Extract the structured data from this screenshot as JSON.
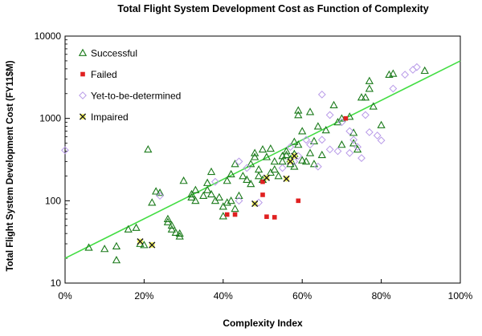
{
  "chart_data": {
    "type": "scatter",
    "title": "Total Flight System Development Cost as Function of Complexity",
    "xlabel": "Complexity Index",
    "ylabel": "Total Flight System Development Cost (FY11$M)",
    "xlim": [
      0,
      100
    ],
    "ylim": [
      10,
      10000
    ],
    "yscale": "log",
    "x_ticks": [
      "0%",
      "20%",
      "40%",
      "60%",
      "80%",
      "100%"
    ],
    "x_tick_values": [
      0,
      20,
      40,
      60,
      80,
      100
    ],
    "y_ticks": [
      "10",
      "100",
      "1000",
      "10000"
    ],
    "y_tick_values": [
      10,
      100,
      1000,
      10000
    ],
    "grid": false,
    "legend_position": "top-left",
    "trendline": {
      "color": "#44dd44",
      "points": [
        [
          0,
          20
        ],
        [
          100,
          5000
        ]
      ]
    },
    "series": [
      {
        "name": "Successful",
        "marker": "triangle",
        "color": "#1a7a1a",
        "points": [
          [
            6,
            27
          ],
          [
            10,
            26
          ],
          [
            13,
            19
          ],
          [
            13,
            28
          ],
          [
            16,
            45
          ],
          [
            18,
            47
          ],
          [
            19,
            30
          ],
          [
            20,
            29
          ],
          [
            21,
            420
          ],
          [
            22,
            95
          ],
          [
            23,
            130
          ],
          [
            24,
            125
          ],
          [
            26,
            60
          ],
          [
            26,
            55
          ],
          [
            27,
            50
          ],
          [
            27,
            45
          ],
          [
            28,
            41
          ],
          [
            29,
            40
          ],
          [
            29,
            37
          ],
          [
            30,
            175
          ],
          [
            32,
            110
          ],
          [
            32,
            120
          ],
          [
            33,
            100
          ],
          [
            33,
            135
          ],
          [
            35,
            115
          ],
          [
            36,
            135
          ],
          [
            36,
            165
          ],
          [
            37,
            225
          ],
          [
            37,
            120
          ],
          [
            38,
            100
          ],
          [
            39,
            110
          ],
          [
            40,
            85
          ],
          [
            40,
            65
          ],
          [
            41,
            95
          ],
          [
            41,
            175
          ],
          [
            42,
            100
          ],
          [
            42,
            210
          ],
          [
            43,
            80
          ],
          [
            43,
            280
          ],
          [
            44,
            115
          ],
          [
            45,
            200
          ],
          [
            46,
            180
          ],
          [
            47,
            280
          ],
          [
            47,
            160
          ],
          [
            48,
            380
          ],
          [
            48,
            340
          ],
          [
            49,
            200
          ],
          [
            49,
            240
          ],
          [
            50,
            180
          ],
          [
            50,
            420
          ],
          [
            51,
            340
          ],
          [
            52,
            430
          ],
          [
            52,
            220
          ],
          [
            53,
            300
          ],
          [
            53,
            240
          ],
          [
            54,
            200
          ],
          [
            55,
            300
          ],
          [
            55,
            350
          ],
          [
            56,
            360
          ],
          [
            56,
            400
          ],
          [
            57,
            280
          ],
          [
            57,
            320
          ],
          [
            58,
            370
          ],
          [
            58,
            260
          ],
          [
            58,
            520
          ],
          [
            59,
            480
          ],
          [
            59,
            1250
          ],
          [
            59,
            1100
          ],
          [
            60,
            700
          ],
          [
            60,
            310
          ],
          [
            61,
            300
          ],
          [
            62,
            380
          ],
          [
            62,
            1200
          ],
          [
            63,
            530
          ],
          [
            63,
            280
          ],
          [
            64,
            800
          ],
          [
            65,
            360
          ],
          [
            66,
            720
          ],
          [
            68,
            1450
          ],
          [
            69,
            900
          ],
          [
            70,
            480
          ],
          [
            70,
            1000
          ],
          [
            72,
            1050
          ],
          [
            73,
            670
          ],
          [
            73,
            500
          ],
          [
            74,
            420
          ],
          [
            75,
            1800
          ],
          [
            76,
            1800
          ],
          [
            77,
            2850
          ],
          [
            77,
            2300
          ],
          [
            78,
            1400
          ],
          [
            80,
            830
          ],
          [
            82,
            3400
          ],
          [
            83,
            3500
          ],
          [
            91,
            3800
          ]
        ]
      },
      {
        "name": "Failed",
        "marker": "square",
        "color": "#e02020",
        "points": [
          [
            41,
            68
          ],
          [
            43,
            68
          ],
          [
            50,
            170
          ],
          [
            50,
            118
          ],
          [
            51,
            64
          ],
          [
            53,
            63
          ],
          [
            59,
            100
          ],
          [
            71,
            1000
          ]
        ]
      },
      {
        "name": "Yet-to-be-determined",
        "marker": "diamond",
        "color": "#b89ae8",
        "points": [
          [
            0,
            410
          ],
          [
            24,
            115
          ],
          [
            38,
            170
          ],
          [
            44,
            100
          ],
          [
            44,
            300
          ],
          [
            46,
            250
          ],
          [
            49,
            95
          ],
          [
            55,
            250
          ],
          [
            57,
            450
          ],
          [
            58,
            300
          ],
          [
            59,
            350
          ],
          [
            61,
            550
          ],
          [
            62,
            480
          ],
          [
            64,
            260
          ],
          [
            65,
            1950
          ],
          [
            65,
            550
          ],
          [
            67,
            420
          ],
          [
            67,
            1100
          ],
          [
            69,
            400
          ],
          [
            70,
            900
          ],
          [
            72,
            700
          ],
          [
            72,
            380
          ],
          [
            73,
            550
          ],
          [
            74,
            450
          ],
          [
            75,
            330
          ],
          [
            76,
            1100
          ],
          [
            77,
            680
          ],
          [
            79,
            620
          ],
          [
            80,
            540
          ],
          [
            83,
            2300
          ],
          [
            86,
            3400
          ],
          [
            88,
            3900
          ],
          [
            89,
            4200
          ]
        ]
      },
      {
        "name": "Impaired",
        "marker": "x",
        "color": "#222222",
        "points": [
          [
            19,
            32
          ],
          [
            22,
            29
          ],
          [
            48,
            92
          ],
          [
            51,
            190
          ],
          [
            56,
            185
          ],
          [
            57,
            300
          ],
          [
            58,
            350
          ]
        ]
      }
    ]
  }
}
